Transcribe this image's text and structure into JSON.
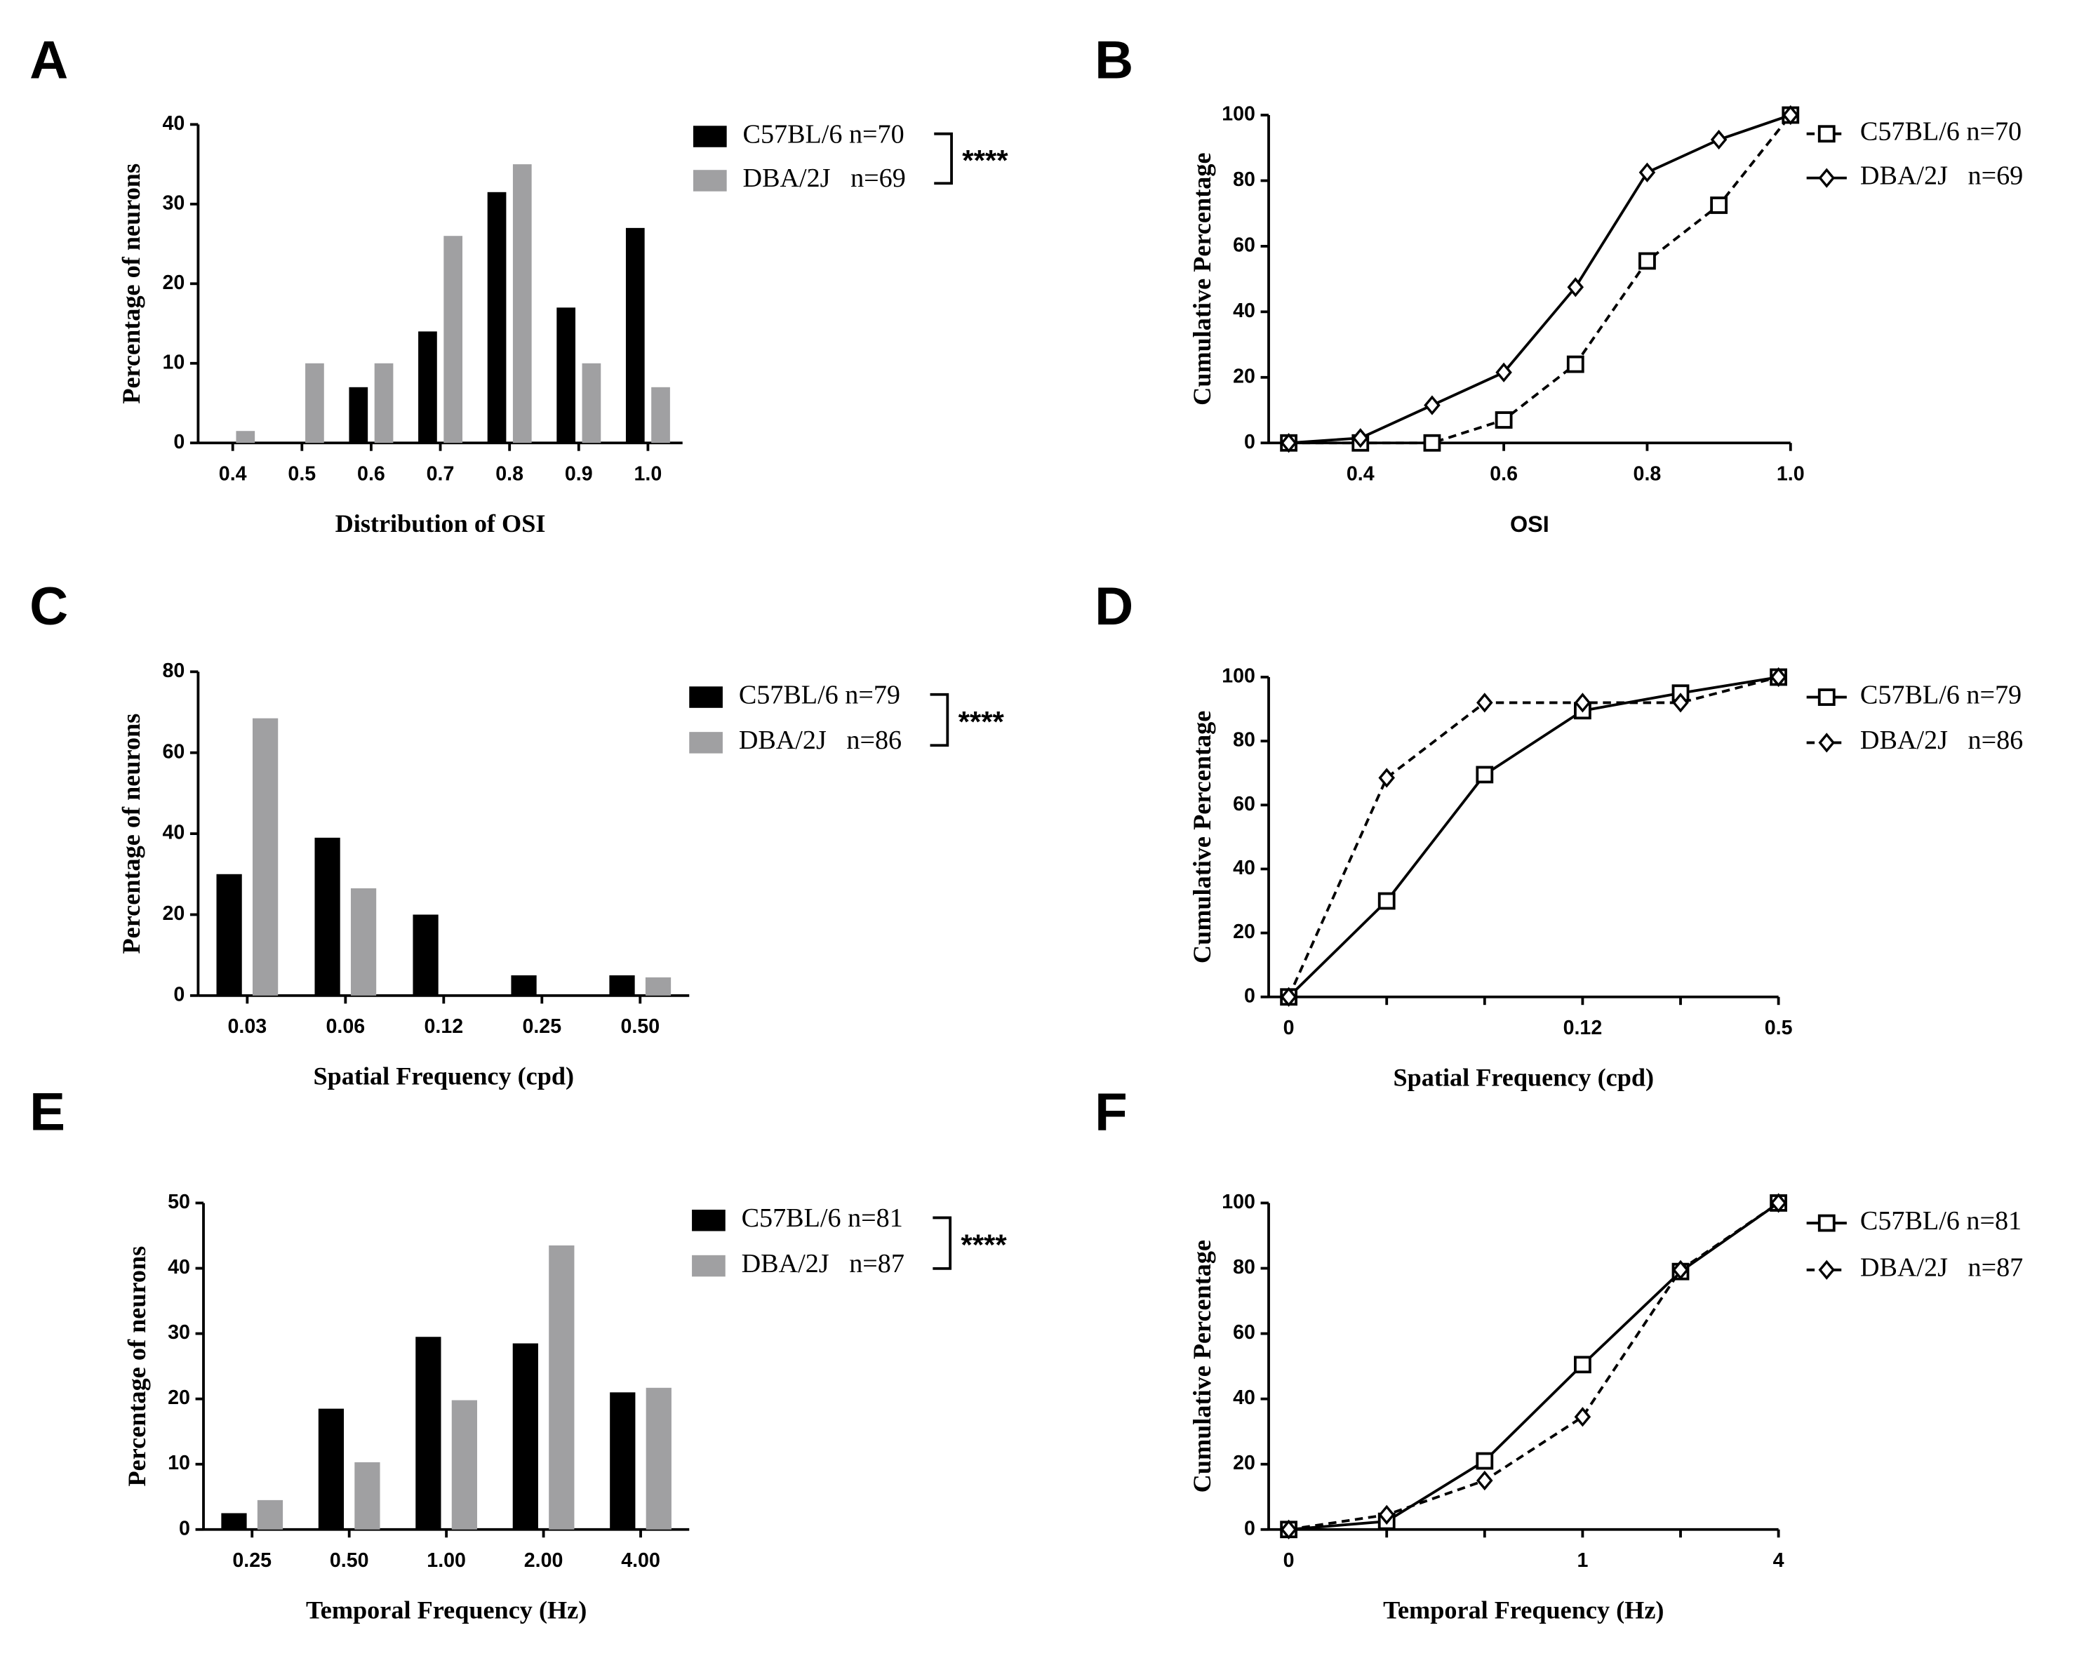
{
  "chart_data": [
    {
      "type": "bar",
      "panel": "A",
      "xlabel": "Distribution of OSI",
      "ylabel": "Percentage of neurons",
      "categories": [
        "0.4",
        "0.5",
        "0.6",
        "0.7",
        "0.8",
        "0.9",
        "1.0"
      ],
      "series": [
        {
          "name": "C57BL/6 n=70",
          "color": "#000000",
          "values": [
            0,
            0,
            7,
            14,
            31.5,
            17,
            27
          ]
        },
        {
          "name": "DBA/2J   n=69",
          "color": "#a0a0a2",
          "values": [
            1.5,
            10,
            10,
            26,
            35,
            10,
            7
          ]
        }
      ],
      "annotation": "****",
      "ylim": [
        0,
        40
      ],
      "yticks": [
        0,
        10,
        20,
        30,
        40
      ]
    },
    {
      "type": "line",
      "panel": "B",
      "xlabel": "OSI",
      "ylabel": "Cumulative Percentage",
      "x": [
        0.3,
        0.4,
        0.5,
        0.6,
        0.7,
        0.8,
        0.9,
        1.0
      ],
      "series": [
        {
          "name": "C57BL/6 n=70",
          "color": "#000000",
          "line_style": "dashed",
          "marker": "square",
          "values": [
            0,
            0,
            0,
            7,
            24,
            55.5,
            72.5,
            100
          ]
        },
        {
          "name": "DBA/2J   n=69",
          "color": "#000000",
          "line_style": "solid",
          "marker": "diamond",
          "values": [
            0,
            1.5,
            11.5,
            21.5,
            47.5,
            82.5,
            92.5,
            100
          ]
        }
      ],
      "xlim": [
        0.3,
        1.0
      ],
      "xticks": [
        0.4,
        0.6,
        0.8,
        {
          "value": 1,
          "label": "1.0"
        }
      ],
      "ylim": [
        0,
        100
      ],
      "yticks": [
        0,
        20,
        40,
        60,
        80,
        100
      ]
    },
    {
      "type": "bar",
      "panel": "C",
      "xlabel": "Spatial Frequency (cpd)",
      "ylabel": "Percentage of neurons",
      "categories": [
        "0.03",
        "0.06",
        "0.12",
        "0.25",
        "0.50"
      ],
      "series": [
        {
          "name": "C57BL/6 n=79",
          "color": "#000000",
          "values": [
            30,
            39,
            20,
            5,
            5
          ]
        },
        {
          "name": "DBA/2J   n=86",
          "color": "#a0a0a2",
          "values": [
            68.5,
            26.5,
            0,
            0,
            4.5
          ]
        }
      ],
      "annotation": "****",
      "ylim": [
        0,
        80
      ],
      "yticks": [
        0,
        20,
        40,
        60,
        80
      ]
    },
    {
      "type": "line",
      "panel": "D",
      "xlabel": "Spatial Frequency (cpd)",
      "ylabel": "Cumulative Percentage",
      "categories": [
        "0",
        null,
        null,
        "0.12",
        null,
        "0.5"
      ],
      "series": [
        {
          "name": "C57BL/6 n=79",
          "color": "#000000",
          "line_style": "solid",
          "marker": "square",
          "values": [
            0,
            30,
            69.5,
            89.5,
            95,
            100
          ]
        },
        {
          "name": "DBA/2J   n=86",
          "color": "#000000",
          "line_style": "dashed",
          "marker": "diamond",
          "values": [
            0,
            68.5,
            92,
            92,
            92,
            100
          ]
        }
      ],
      "ylim": [
        0,
        100
      ],
      "yticks": [
        0,
        20,
        40,
        60,
        80,
        100
      ]
    },
    {
      "type": "bar",
      "panel": "E",
      "xlabel": "Temporal Frequency (Hz)",
      "ylabel": "Percentage of neurons",
      "categories": [
        "0.25",
        "0.50",
        "1.00",
        "2.00",
        "4.00"
      ],
      "series": [
        {
          "name": "C57BL/6 n=81",
          "color": "#000000",
          "values": [
            2.5,
            18.5,
            29.5,
            28.5,
            21
          ]
        },
        {
          "name": "DBA/2J   n=87",
          "color": "#a0a0a2",
          "values": [
            4.5,
            10.3,
            19.8,
            43.5,
            21.7
          ]
        }
      ],
      "annotation": "****",
      "ylim": [
        0,
        50
      ],
      "yticks": [
        0,
        10,
        20,
        30,
        40,
        50
      ]
    },
    {
      "type": "line",
      "panel": "F",
      "xlabel": "Temporal Frequency (Hz)",
      "ylabel": "Cumulative Percentage",
      "categories": [
        "0",
        null,
        null,
        "1",
        null,
        "4"
      ],
      "series": [
        {
          "name": "C57BL/6 n=81",
          "color": "#000000",
          "line_style": "solid",
          "marker": "square",
          "values": [
            0,
            2.5,
            21,
            50.5,
            79,
            100
          ]
        },
        {
          "name": "DBA/2J   n=87",
          "color": "#000000",
          "line_style": "dashed",
          "marker": "diamond",
          "values": [
            0,
            4.5,
            15,
            34.5,
            79.5,
            100
          ]
        }
      ],
      "ylim": [
        0,
        100
      ],
      "yticks": [
        0,
        20,
        40,
        60,
        80,
        100
      ]
    }
  ]
}
